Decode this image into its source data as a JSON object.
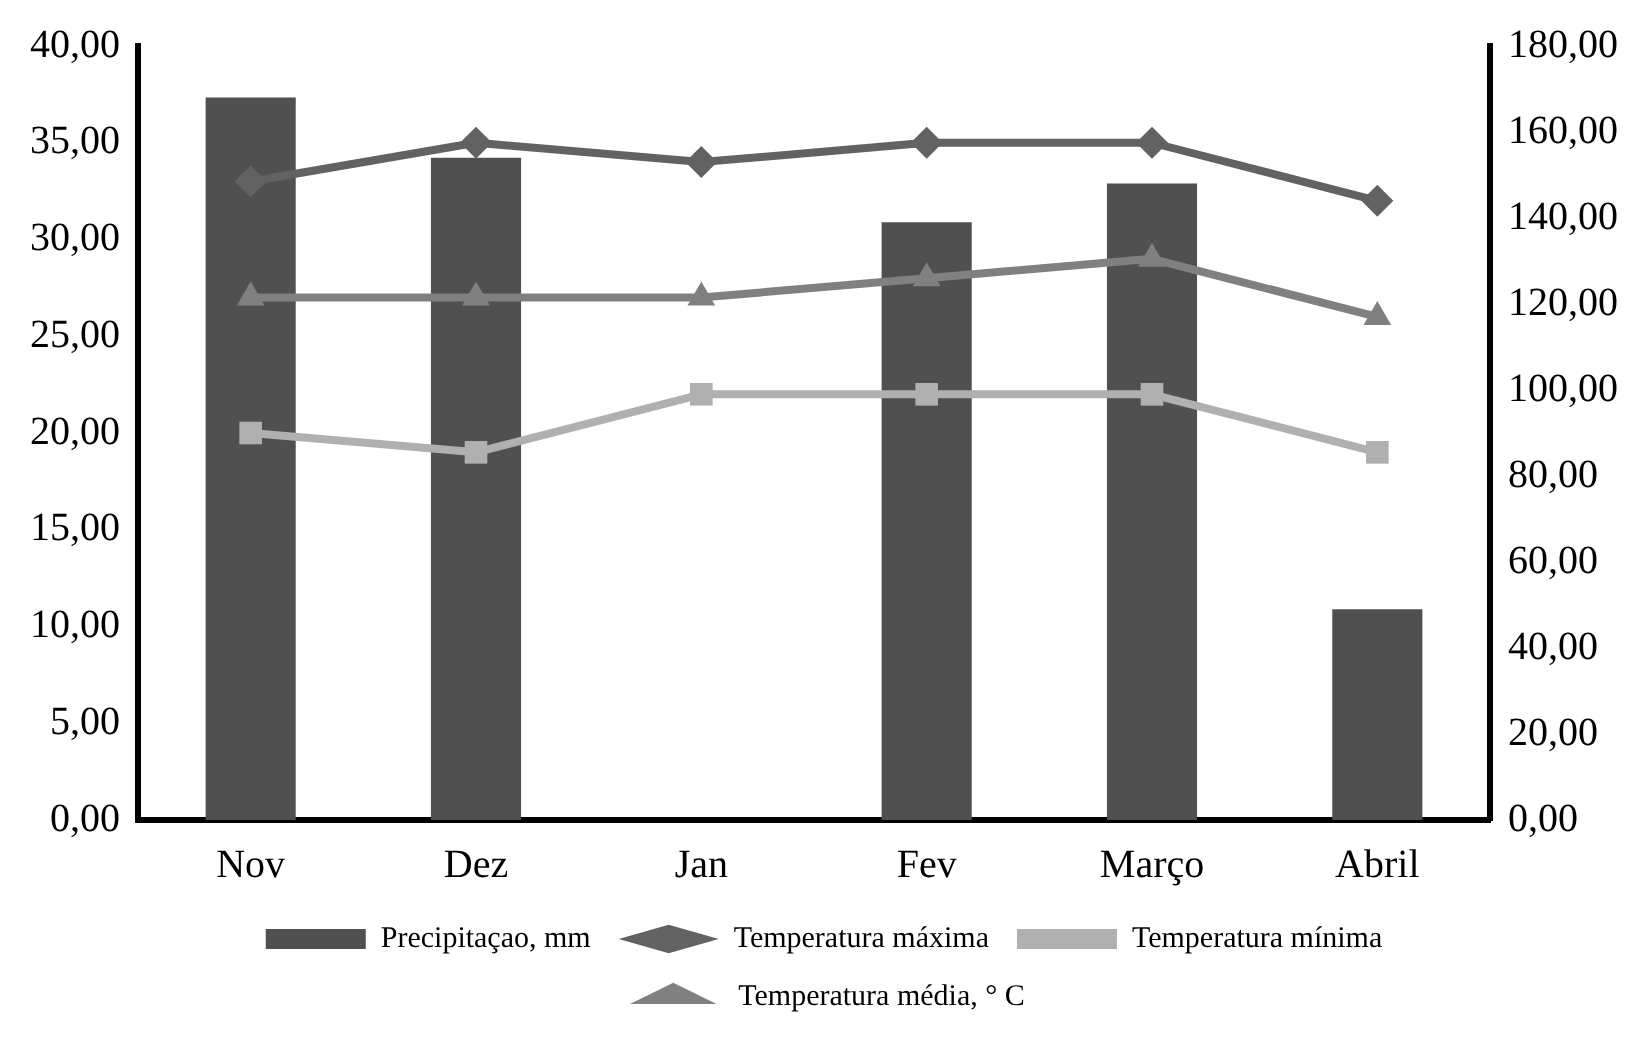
{
  "chart_data": {
    "type": "bar",
    "categories": [
      "Nov",
      "Dez",
      "Jan",
      "Fev",
      "Março",
      "Abril"
    ],
    "series": [
      {
        "name": "Precipitaçao, mm",
        "axis": "y2",
        "color": "#505050",
        "values": [
          168,
          154,
          0,
          139,
          148,
          49
        ]
      },
      {
        "name": "Temperatura máxima",
        "type": "line",
        "axis": "y",
        "color": "#626262",
        "marker": "diamond",
        "values": [
          33,
          35,
          34,
          35,
          35,
          32
        ]
      },
      {
        "name": "Temperatura mínima",
        "type": "line",
        "axis": "y",
        "color": "#b0b0b0",
        "marker": "square",
        "values": [
          20,
          19,
          22,
          22,
          22,
          19
        ]
      },
      {
        "name": "Temperatura média, ° C",
        "type": "line",
        "axis": "y",
        "color": "#808080",
        "marker": "triangle",
        "values": [
          27,
          27,
          27,
          28,
          29,
          26
        ]
      }
    ],
    "ylim": [
      0,
      40
    ],
    "yticks": [
      {
        "value": 0,
        "label": "0,00"
      },
      {
        "value": 5,
        "label": "5,00"
      },
      {
        "value": 10,
        "label": "10,00"
      },
      {
        "value": 15,
        "label": "15,00"
      },
      {
        "value": 20,
        "label": "20,00"
      },
      {
        "value": 25,
        "label": "25,00"
      },
      {
        "value": 30,
        "label": "30,00"
      },
      {
        "value": 35,
        "label": "35,00"
      },
      {
        "value": 40,
        "label": "40,00"
      }
    ],
    "y2lim": [
      0,
      180
    ],
    "y2ticks": [
      {
        "value": 0,
        "label": "0,00"
      },
      {
        "value": 20,
        "label": "20,00"
      },
      {
        "value": 40,
        "label": "40,00"
      },
      {
        "value": 60,
        "label": "60,00"
      },
      {
        "value": 80,
        "label": "80,00"
      },
      {
        "value": 100,
        "label": "100,00"
      },
      {
        "value": 120,
        "label": "120,00"
      },
      {
        "value": 140,
        "label": "140,00"
      },
      {
        "value": 160,
        "label": "160,00"
      },
      {
        "value": 180,
        "label": "180,00"
      }
    ],
    "grid": false,
    "legend": "bottom"
  }
}
